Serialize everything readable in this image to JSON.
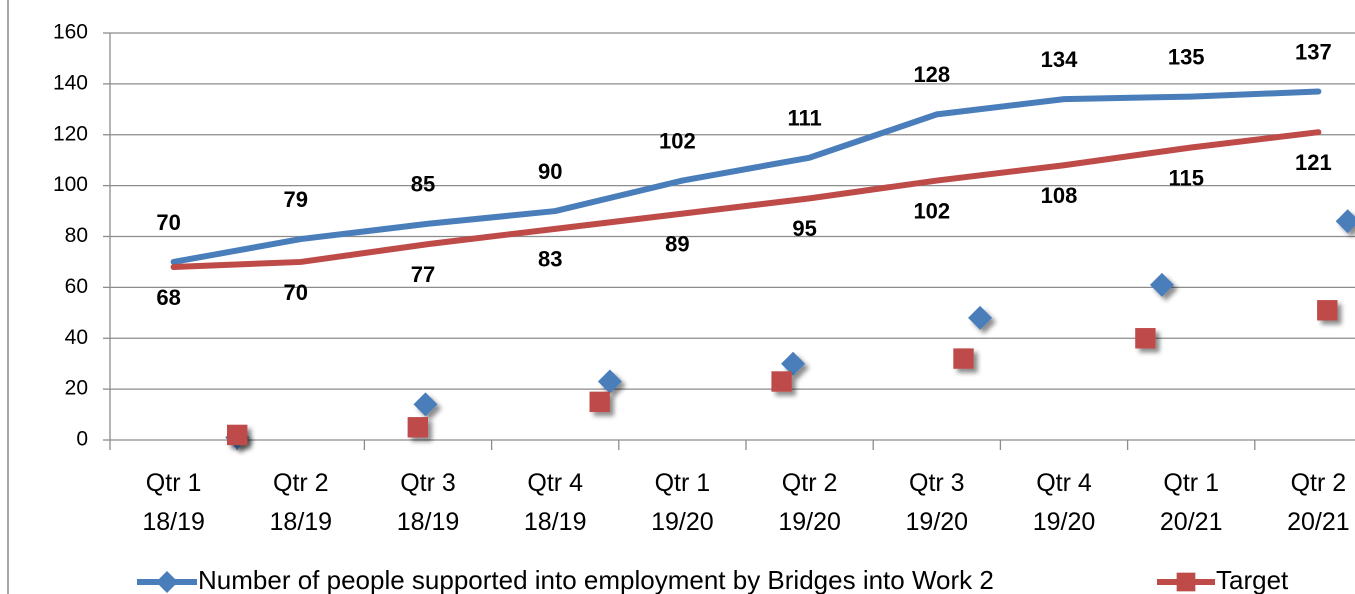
{
  "chart_data": {
    "type": "line",
    "categories": [
      [
        "Qtr 1",
        "18/19"
      ],
      [
        "Qtr 2",
        "18/19"
      ],
      [
        "Qtr 3",
        "18/19"
      ],
      [
        "Qtr 4",
        "18/19"
      ],
      [
        "Qtr 1",
        "19/20"
      ],
      [
        "Qtr 2",
        "19/20"
      ],
      [
        "Qtr 3",
        "19/20"
      ],
      [
        "Qtr 4",
        "19/20"
      ],
      [
        "Qtr 1",
        "20/21"
      ],
      [
        "Qtr 2",
        "20/21"
      ]
    ],
    "series": [
      {
        "name": "Number of people supported into employment by Bridges into Work 2",
        "color": "#4a7ebb",
        "marker": "diamond",
        "values": [
          70,
          79,
          85,
          90,
          102,
          111,
          128,
          134,
          135,
          137
        ],
        "marker_x": [
          1.0,
          2.48,
          3.93,
          5.37,
          6.84,
          8.27,
          9.73
        ],
        "marker_values": [
          1,
          14,
          23,
          30,
          48,
          61,
          86
        ]
      },
      {
        "name": "Target",
        "color": "#be4b48",
        "marker": "square",
        "values": [
          68,
          70,
          77,
          83,
          89,
          95,
          102,
          108,
          115,
          121
        ],
        "marker_x": [
          1.0,
          2.42,
          3.85,
          5.28,
          6.71,
          8.14,
          9.57
        ],
        "marker_values": [
          2,
          5,
          15,
          23,
          32,
          40,
          51
        ]
      }
    ],
    "xlim": [
      0,
      10
    ],
    "ylim": [
      0,
      160
    ],
    "yticks": [
      0,
      20,
      40,
      60,
      80,
      100,
      120,
      140,
      160
    ],
    "grid": true,
    "legend": "bottom"
  }
}
